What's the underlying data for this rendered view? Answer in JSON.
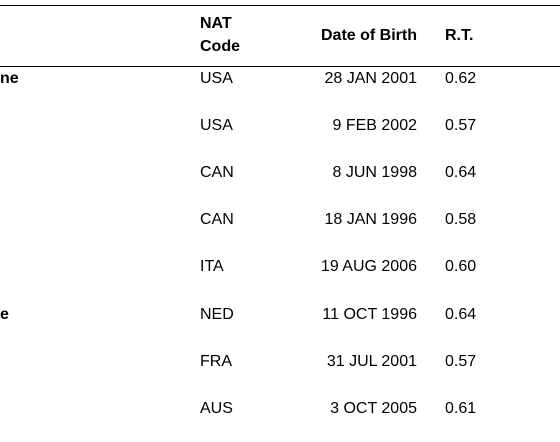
{
  "table": {
    "headers": {
      "nat": [
        "NAT",
        "Code"
      ],
      "dob": "Date of Birth",
      "rt": "R.T."
    },
    "rows": [
      {
        "name": "ne",
        "nat": "USA",
        "dob": "28 JAN 2001",
        "rt": "0.62"
      },
      {
        "nat": "USA",
        "dob": "9 FEB 2002",
        "rt": "0.57"
      },
      {
        "nat": "CAN",
        "dob": "8 JUN 1998",
        "rt": "0.64"
      },
      {
        "nat": "CAN",
        "dob": "18 JAN 1996",
        "rt": "0.58"
      },
      {
        "nat": "ITA",
        "dob": "19 AUG 2006",
        "rt": "0.60"
      },
      {
        "name": "e",
        "nat": "NED",
        "dob": "11 OCT 1996",
        "rt": "0.64"
      },
      {
        "nat": "FRA",
        "dob": "31 JUL 2001",
        "rt": "0.57"
      },
      {
        "nat": "AUS",
        "dob": "3 OCT 2005",
        "rt": "0.61"
      }
    ]
  }
}
